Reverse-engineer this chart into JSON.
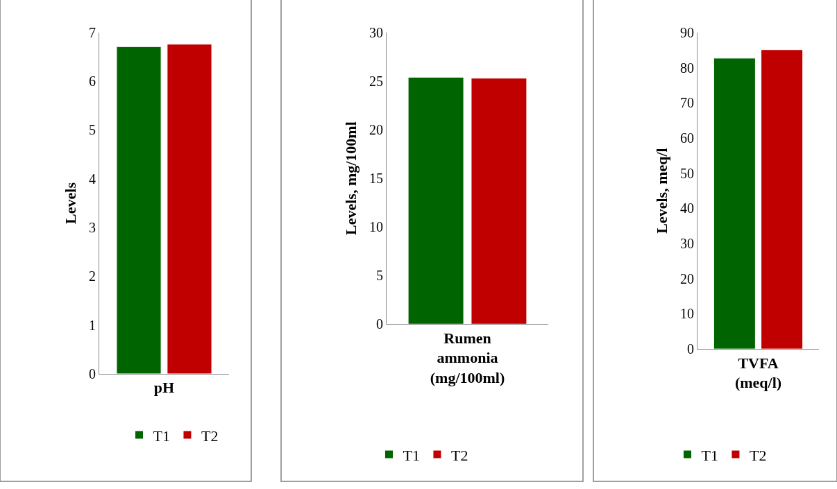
{
  "chart_data": [
    {
      "type": "bar",
      "categories": [
        "pH"
      ],
      "ylabel": "Levels",
      "ylim": [
        0,
        7
      ],
      "yticks": [
        0,
        1,
        2,
        3,
        4,
        5,
        6,
        7
      ],
      "legend": "bottom",
      "series": [
        {
          "name": "T1",
          "color": "#006400",
          "values": [
            6.71
          ]
        },
        {
          "name": "T2",
          "color": "#c00000",
          "values": [
            6.76
          ]
        }
      ]
    },
    {
      "type": "bar",
      "categories": [
        "Rumen\nammonia\n(mg/100ml)"
      ],
      "ylabel": "Levels, mg/100ml",
      "ylim": [
        0,
        30
      ],
      "yticks": [
        0,
        5,
        10,
        15,
        20,
        25,
        30
      ],
      "legend": "bottom",
      "series": [
        {
          "name": "T1",
          "color": "#006400",
          "values": [
            25.4
          ]
        },
        {
          "name": "T2",
          "color": "#c00000",
          "values": [
            25.3
          ]
        }
      ]
    },
    {
      "type": "bar",
      "categories": [
        "TVFA\n(meq/l)"
      ],
      "ylabel": "Levels, meq/l",
      "ylim": [
        0,
        90
      ],
      "yticks": [
        0,
        10,
        20,
        30,
        40,
        50,
        60,
        70,
        80,
        90
      ],
      "legend": "bottom",
      "series": [
        {
          "name": "T1",
          "color": "#006400",
          "values": [
            82.7
          ]
        },
        {
          "name": "T2",
          "color": "#c00000",
          "values": [
            85.1
          ]
        }
      ]
    }
  ]
}
